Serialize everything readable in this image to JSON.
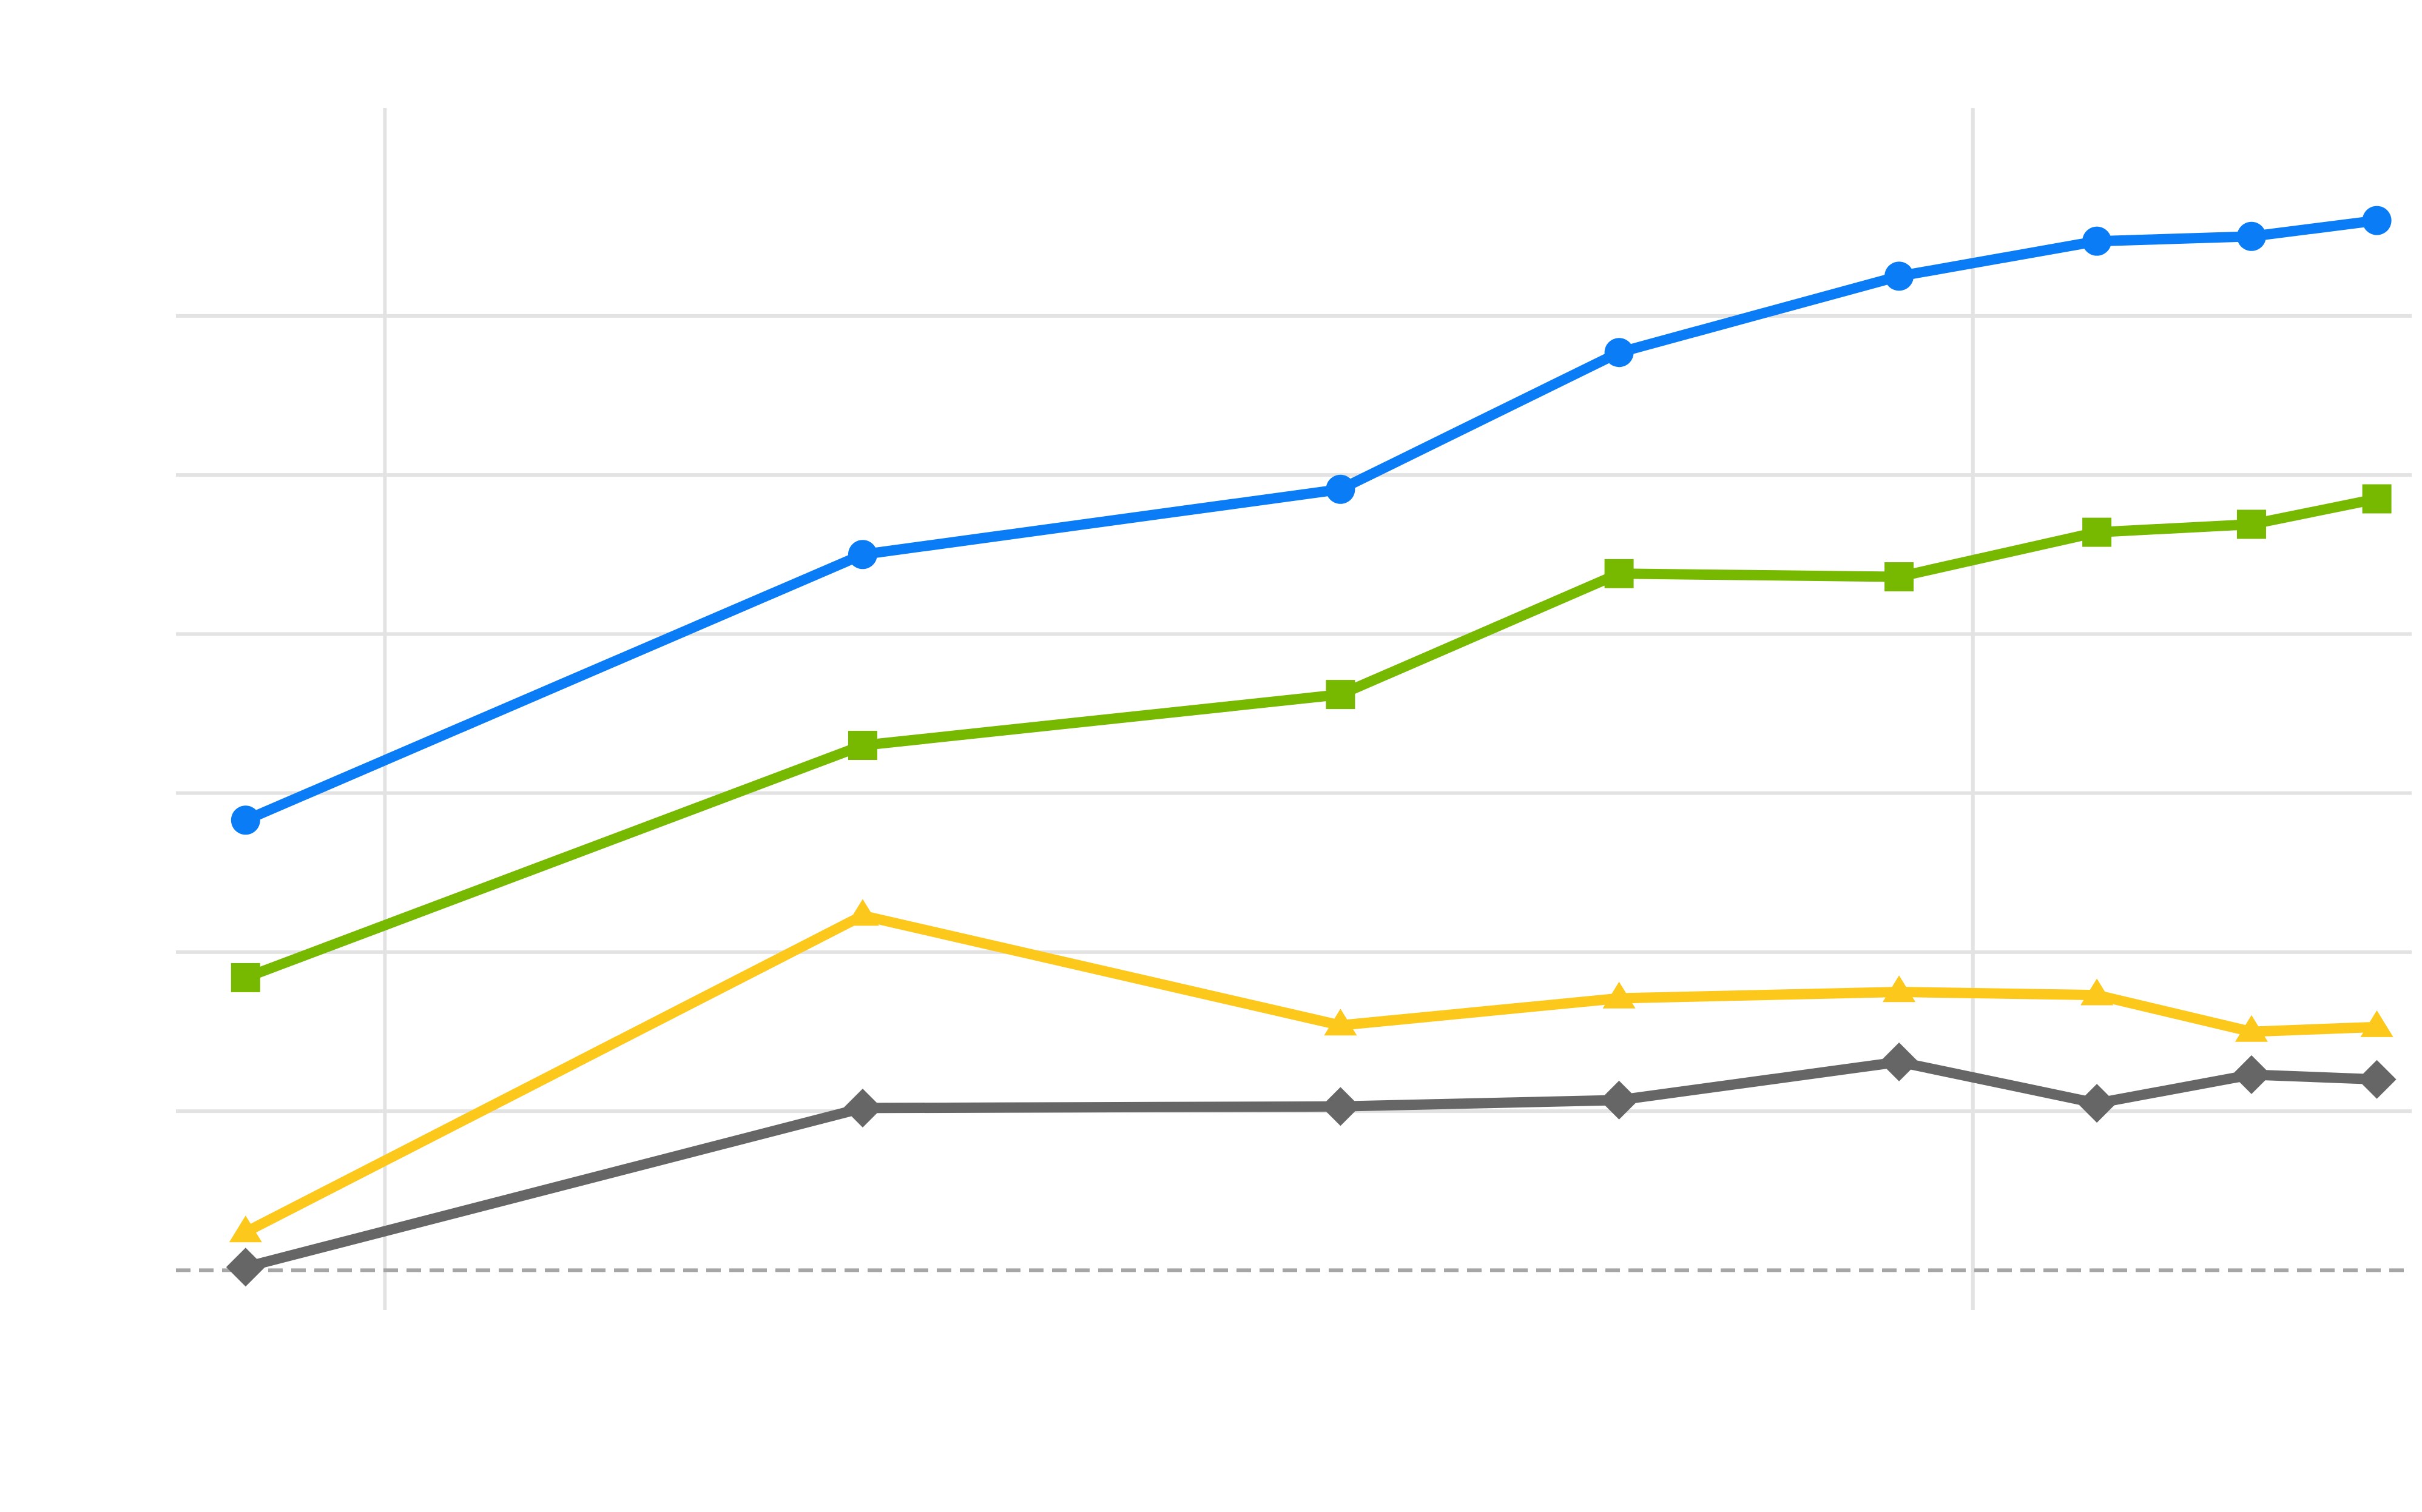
{
  "chart_data": {
    "type": "line",
    "title": "",
    "xlabel": "",
    "ylabel": "",
    "x": [
      1,
      5.43,
      8.86,
      10.86,
      12.87,
      14.29,
      15.4,
      16.3
    ],
    "xlim": [
      0.5,
      16.55
    ],
    "ylim": [
      -0.25,
      7.3
    ],
    "grid": {
      "horizontal": true,
      "vertical": true,
      "vertical_at": [
        2,
        13.4
      ],
      "horizontal_at": [
        1,
        2,
        3,
        4,
        5,
        6
      ]
    },
    "reference_line": {
      "y": 0,
      "style": "dashed"
    },
    "series": [
      {
        "marker": "circle",
        "color": "#0a7cf5",
        "values": [
          2.83,
          4.5,
          4.91,
          5.77,
          6.25,
          6.47,
          6.5,
          6.6
        ]
      },
      {
        "marker": "square",
        "color": "#76b900",
        "values": [
          1.84,
          3.3,
          3.62,
          4.38,
          4.36,
          4.64,
          4.69,
          4.85
        ]
      },
      {
        "marker": "triangle",
        "color": "#fcc81b",
        "values": [
          0.24,
          2.23,
          1.54,
          1.71,
          1.75,
          1.73,
          1.5,
          1.53
        ]
      },
      {
        "marker": "diamond",
        "color": "#666666",
        "values": [
          0.02,
          1.02,
          1.03,
          1.07,
          1.31,
          1.05,
          1.23,
          1.2
        ]
      }
    ]
  }
}
